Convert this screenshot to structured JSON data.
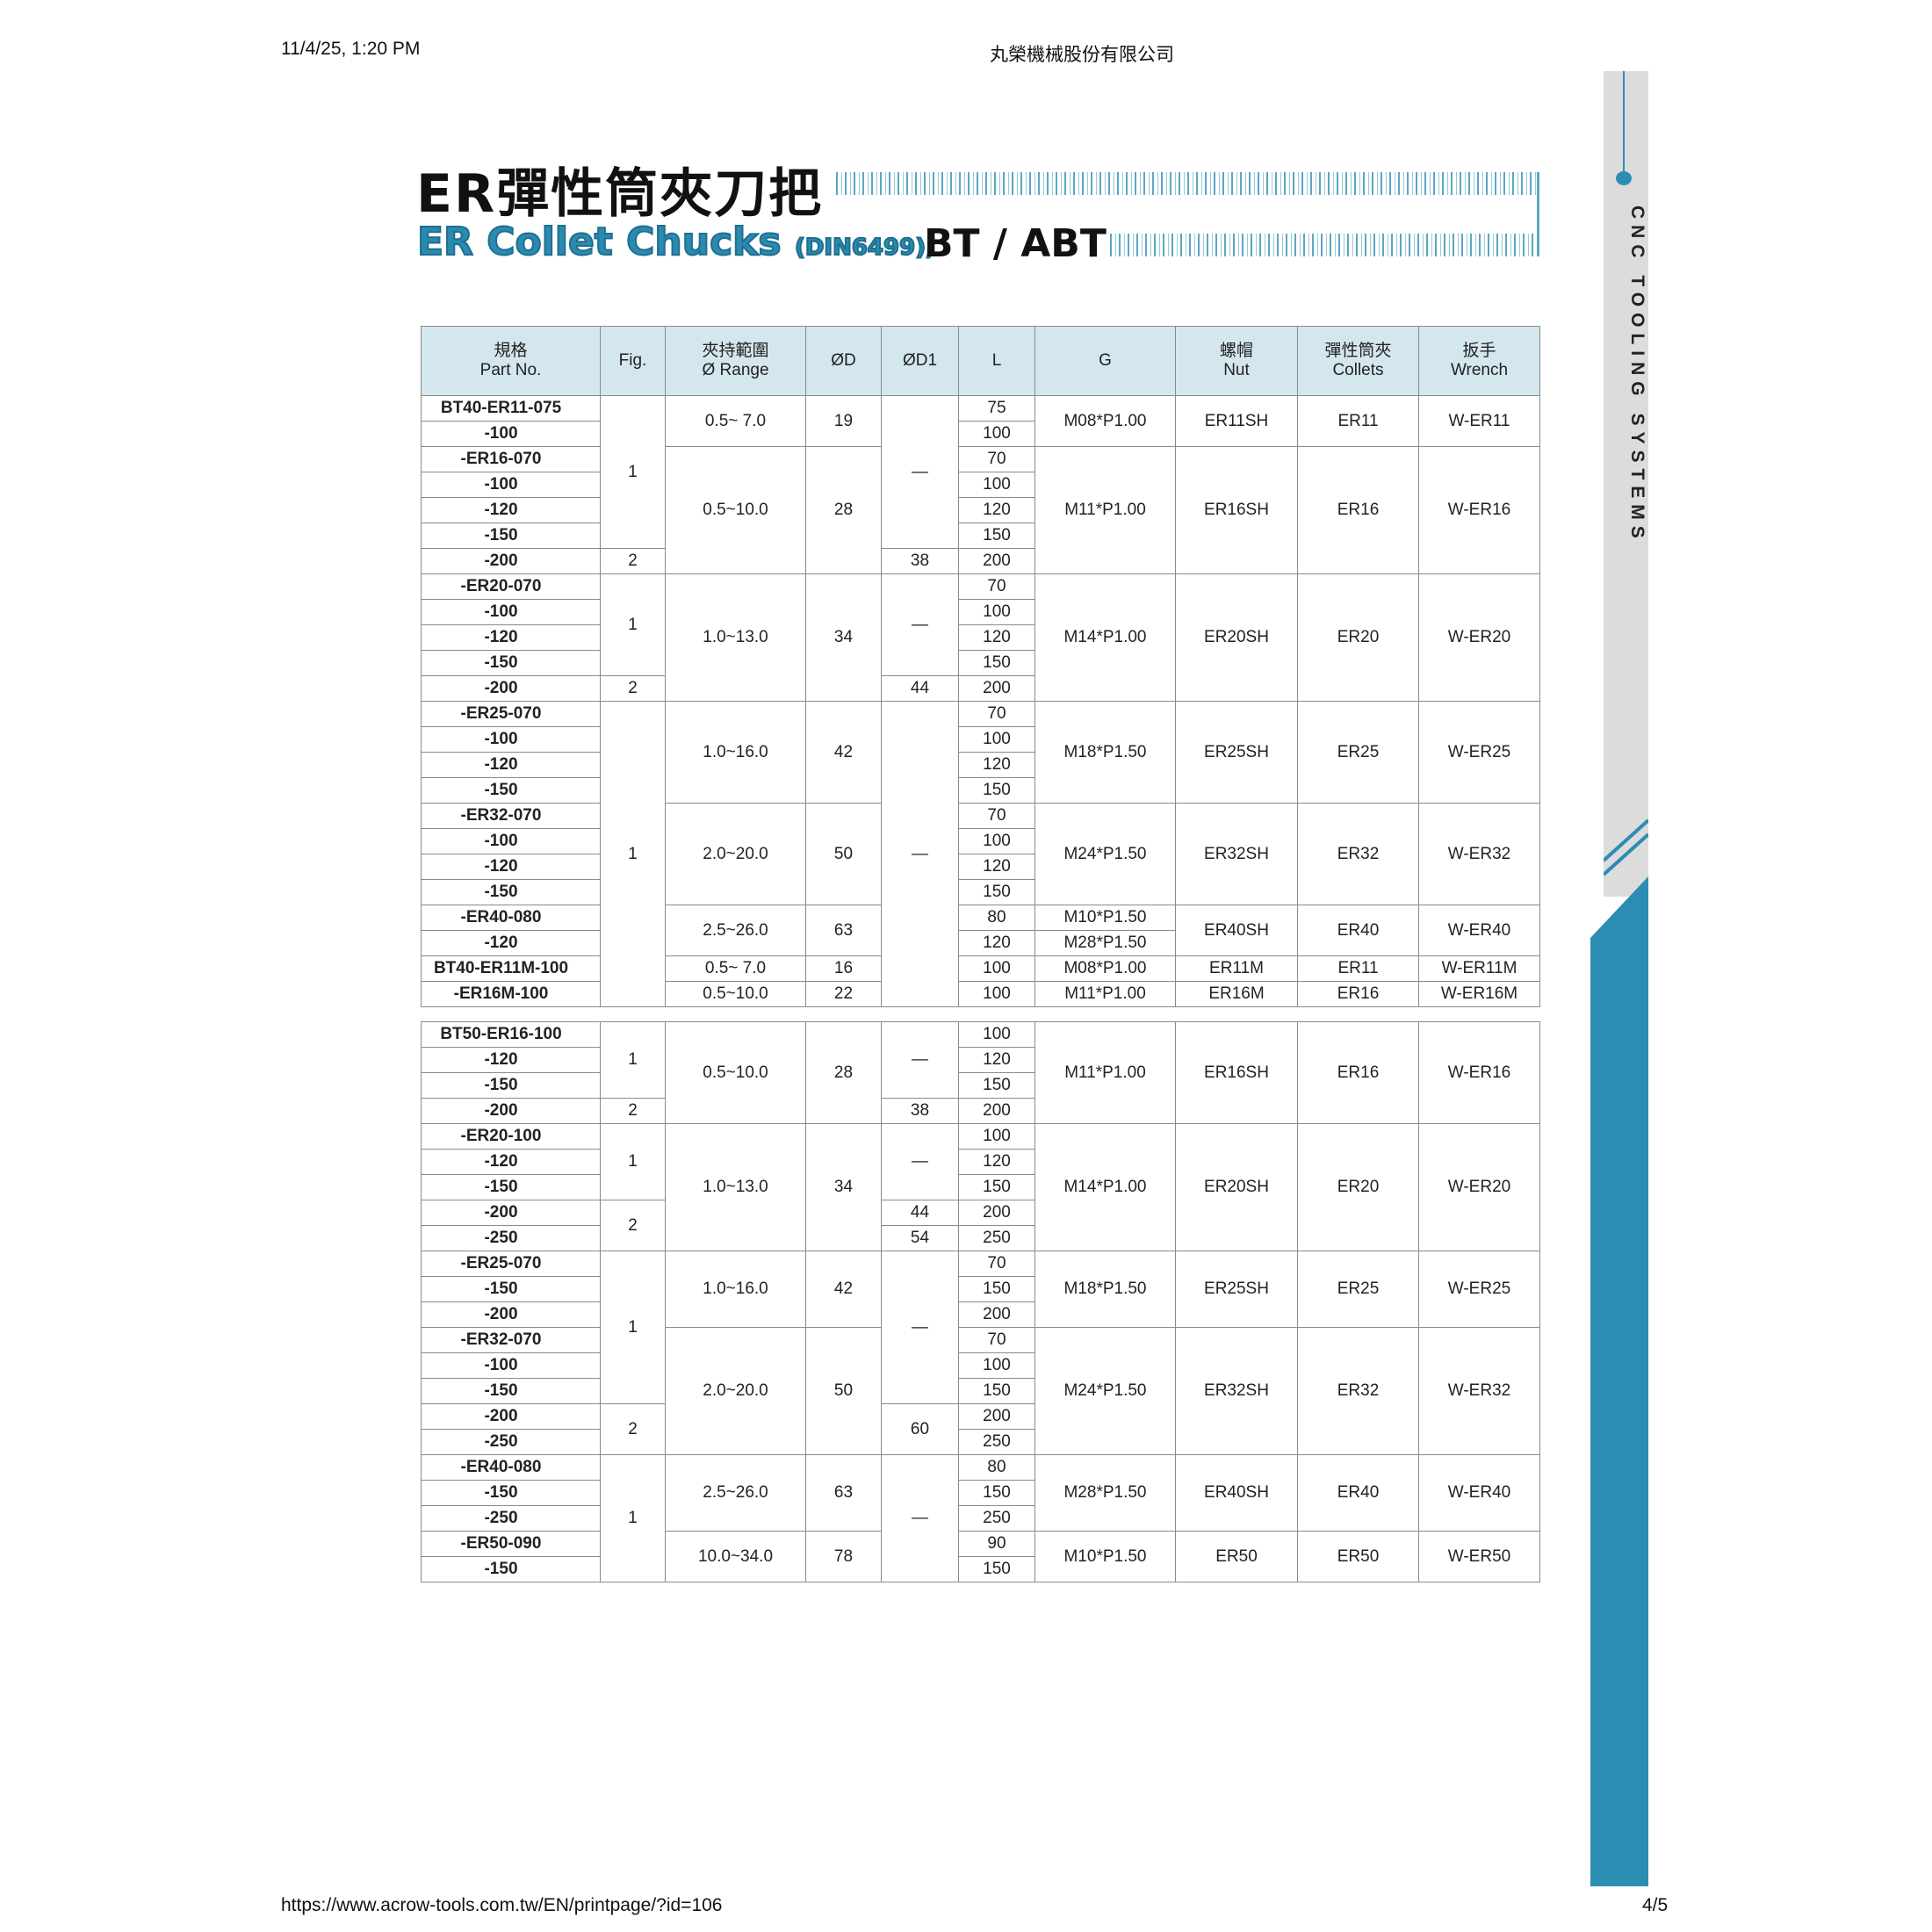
{
  "browser_header": {
    "datetime": "11/4/25, 1:20 PM",
    "page_title": "丸榮機械股份有限公司"
  },
  "browser_footer": {
    "url": "https://www.acrow-tools.com.tw/EN/printpage/?id=106",
    "page": "4/5"
  },
  "title": {
    "zh": "ER彈性筒夾刀把",
    "en": "ER Collet Chucks",
    "en_note": "(DIN6499),",
    "type": "BT / ABT"
  },
  "sidebar": {
    "text": "CNC TOOLING SYSTEMS",
    "accent": "#2c8db2"
  },
  "columns": [
    {
      "zh": "規格",
      "en": "Part No."
    },
    {
      "zh": "",
      "en": "Fig."
    },
    {
      "zh": "夾持範圍",
      "en": "Ø Range"
    },
    {
      "zh": "",
      "en": "ØD"
    },
    {
      "zh": "",
      "en": "ØD1"
    },
    {
      "zh": "",
      "en": "L"
    },
    {
      "zh": "",
      "en": "G"
    },
    {
      "zh": "螺帽",
      "en": "Nut"
    },
    {
      "zh": "彈性筒夾",
      "en": "Collets"
    },
    {
      "zh": "扳手",
      "en": "Wrench"
    }
  ],
  "tables": [
    {
      "part_no": [
        "BT40-ER11-075",
        "-100",
        "-ER16-070",
        "-100",
        "-120",
        "-150",
        "-200",
        "-ER20-070",
        "-100",
        "-120",
        "-150",
        "-200",
        "-ER25-070",
        "-100",
        "-120",
        "-150",
        "-ER32-070",
        "-100",
        "-120",
        "-150",
        "-ER40-080",
        "-120",
        "BT40-ER11M-100",
        "-ER16M-100"
      ],
      "L": [
        "75",
        "100",
        "70",
        "100",
        "120",
        "150",
        "200",
        "70",
        "100",
        "120",
        "150",
        "200",
        "70",
        "100",
        "120",
        "150",
        "70",
        "100",
        "120",
        "150",
        "80",
        "120",
        "100",
        "100"
      ],
      "fig": [
        {
          "v": "1",
          "span": 6
        },
        {
          "v": "2",
          "span": 1
        },
        {
          "v": "1",
          "span": 4
        },
        {
          "v": "2",
          "span": 1
        },
        {
          "v": "1",
          "span": 12
        }
      ],
      "range": [
        {
          "v": "0.5~ 7.0",
          "span": 2
        },
        {
          "v": "0.5~10.0",
          "span": 5
        },
        {
          "v": "1.0~13.0",
          "span": 5
        },
        {
          "v": "1.0~16.0",
          "span": 4
        },
        {
          "v": "2.0~20.0",
          "span": 4
        },
        {
          "v": "2.5~26.0",
          "span": 2
        },
        {
          "v": "0.5~ 7.0",
          "span": 1
        },
        {
          "v": "0.5~10.0",
          "span": 1
        }
      ],
      "od": [
        {
          "v": "19",
          "span": 2
        },
        {
          "v": "28",
          "span": 5
        },
        {
          "v": "34",
          "span": 5
        },
        {
          "v": "42",
          "span": 4
        },
        {
          "v": "50",
          "span": 4
        },
        {
          "v": "63",
          "span": 2
        },
        {
          "v": "16",
          "span": 1
        },
        {
          "v": "22",
          "span": 1
        }
      ],
      "od1": [
        {
          "v": "—",
          "span": 6
        },
        {
          "v": "38",
          "span": 1
        },
        {
          "v": "—",
          "span": 4
        },
        {
          "v": "44",
          "span": 1
        },
        {
          "v": "—",
          "span": 12
        }
      ],
      "g": [
        {
          "v": "M08*P1.00",
          "span": 2
        },
        {
          "v": "M11*P1.00",
          "span": 5
        },
        {
          "v": "M14*P1.00",
          "span": 5
        },
        {
          "v": "M18*P1.50",
          "span": 4
        },
        {
          "v": "M24*P1.50",
          "span": 4
        },
        {
          "v": "M10*P1.50",
          "span": 1
        },
        {
          "v": "M28*P1.50",
          "span": 1
        },
        {
          "v": "M08*P1.00",
          "span": 1
        },
        {
          "v": "M11*P1.00",
          "span": 1
        }
      ],
      "nut": [
        {
          "v": "ER11SH",
          "span": 2
        },
        {
          "v": "ER16SH",
          "span": 5
        },
        {
          "v": "ER20SH",
          "span": 5
        },
        {
          "v": "ER25SH",
          "span": 4
        },
        {
          "v": "ER32SH",
          "span": 4
        },
        {
          "v": "ER40SH",
          "span": 2
        },
        {
          "v": "ER11M",
          "span": 1
        },
        {
          "v": "ER16M",
          "span": 1
        }
      ],
      "collets": [
        {
          "v": "ER11",
          "span": 2
        },
        {
          "v": "ER16",
          "span": 5
        },
        {
          "v": "ER20",
          "span": 5
        },
        {
          "v": "ER25",
          "span": 4
        },
        {
          "v": "ER32",
          "span": 4
        },
        {
          "v": "ER40",
          "span": 2
        },
        {
          "v": "ER11",
          "span": 1
        },
        {
          "v": "ER16",
          "span": 1
        }
      ],
      "wrench": [
        {
          "v": "W-ER11",
          "span": 2
        },
        {
          "v": "W-ER16",
          "span": 5
        },
        {
          "v": "W-ER20",
          "span": 5
        },
        {
          "v": "W-ER25",
          "span": 4
        },
        {
          "v": "W-ER32",
          "span": 4
        },
        {
          "v": "W-ER40",
          "span": 2
        },
        {
          "v": "W-ER11M",
          "span": 1
        },
        {
          "v": "W-ER16M",
          "span": 1
        }
      ]
    },
    {
      "part_no": [
        "BT50-ER16-100",
        "-120",
        "-150",
        "-200",
        "-ER20-100",
        "-120",
        "-150",
        "-200",
        "-250",
        "-ER25-070",
        "-150",
        "-200",
        "-ER32-070",
        "-100",
        "-150",
        "-200",
        "-250",
        "-ER40-080",
        "-150",
        "-250",
        "-ER50-090",
        "-150"
      ],
      "L": [
        "100",
        "120",
        "150",
        "200",
        "100",
        "120",
        "150",
        "200",
        "250",
        "70",
        "150",
        "200",
        "70",
        "100",
        "150",
        "200",
        "250",
        "80",
        "150",
        "250",
        "90",
        "150"
      ],
      "fig": [
        {
          "v": "1",
          "span": 3
        },
        {
          "v": "2",
          "span": 1
        },
        {
          "v": "1",
          "span": 3
        },
        {
          "v": "2",
          "span": 2
        },
        {
          "v": "1",
          "span": 6
        },
        {
          "v": "2",
          "span": 2
        },
        {
          "v": "1",
          "span": 5
        }
      ],
      "range": [
        {
          "v": "0.5~10.0",
          "span": 4
        },
        {
          "v": "1.0~13.0",
          "span": 5
        },
        {
          "v": "1.0~16.0",
          "span": 3
        },
        {
          "v": "2.0~20.0",
          "span": 5
        },
        {
          "v": "2.5~26.0",
          "span": 3
        },
        {
          "v": "10.0~34.0",
          "span": 2
        }
      ],
      "od": [
        {
          "v": "28",
          "span": 4
        },
        {
          "v": "34",
          "span": 5
        },
        {
          "v": "42",
          "span": 3
        },
        {
          "v": "50",
          "span": 5
        },
        {
          "v": "63",
          "span": 3
        },
        {
          "v": "78",
          "span": 2
        }
      ],
      "od1": [
        {
          "v": "—",
          "span": 3
        },
        {
          "v": "38",
          "span": 1
        },
        {
          "v": "—",
          "span": 3
        },
        {
          "v": "44",
          "span": 1
        },
        {
          "v": "54",
          "span": 1
        },
        {
          "v": "—",
          "span": 6
        },
        {
          "v": "60",
          "span": 2
        },
        {
          "v": "—",
          "span": 5
        }
      ],
      "g": [
        {
          "v": "M11*P1.00",
          "span": 4
        },
        {
          "v": "M14*P1.00",
          "span": 5
        },
        {
          "v": "M18*P1.50",
          "span": 3
        },
        {
          "v": "M24*P1.50",
          "span": 5
        },
        {
          "v": "M28*P1.50",
          "span": 3
        },
        {
          "v": "M10*P1.50",
          "span": 2
        }
      ],
      "nut": [
        {
          "v": "ER16SH",
          "span": 4
        },
        {
          "v": "ER20SH",
          "span": 5
        },
        {
          "v": "ER25SH",
          "span": 3
        },
        {
          "v": "ER32SH",
          "span": 5
        },
        {
          "v": "ER40SH",
          "span": 3
        },
        {
          "v": "ER50",
          "span": 2
        }
      ],
      "collets": [
        {
          "v": "ER16",
          "span": 4
        },
        {
          "v": "ER20",
          "span": 5
        },
        {
          "v": "ER25",
          "span": 3
        },
        {
          "v": "ER32",
          "span": 5
        },
        {
          "v": "ER40",
          "span": 3
        },
        {
          "v": "ER50",
          "span": 2
        }
      ],
      "wrench": [
        {
          "v": "W-ER16",
          "span": 4
        },
        {
          "v": "W-ER20",
          "span": 5
        },
        {
          "v": "W-ER25",
          "span": 3
        },
        {
          "v": "W-ER32",
          "span": 5
        },
        {
          "v": "W-ER40",
          "span": 3
        },
        {
          "v": "W-ER50",
          "span": 2
        }
      ]
    }
  ]
}
